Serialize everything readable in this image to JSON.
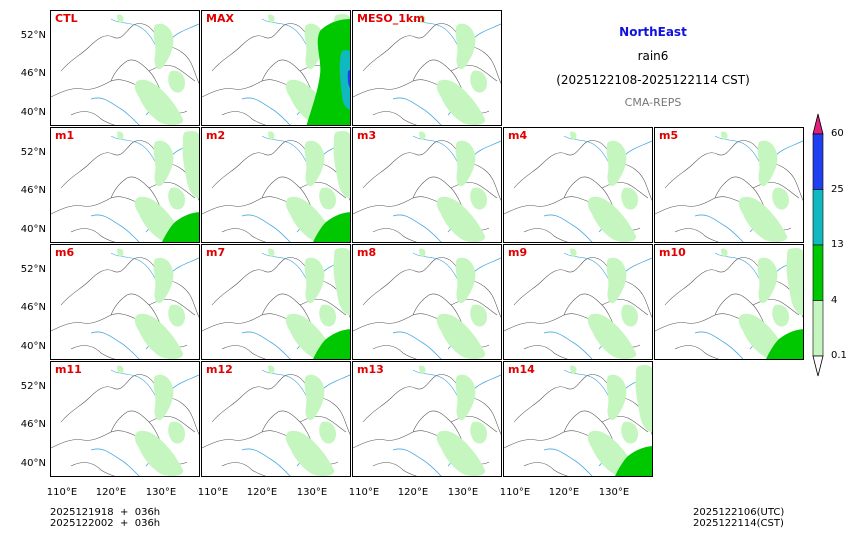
{
  "header": {
    "region": "NorthEast",
    "product": "rain6",
    "period": "(2025122108-2025122114 CST)",
    "source": "CMA-REPS"
  },
  "panels": [
    {
      "label": "CTL",
      "rain": 1
    },
    {
      "label": "MAX",
      "rain": 3
    },
    {
      "label": "MESO_1km",
      "rain": 1
    },
    {
      "label": "m1",
      "rain": 2
    },
    {
      "label": "m2",
      "rain": 2
    },
    {
      "label": "m3",
      "rain": 1
    },
    {
      "label": "m4",
      "rain": 1
    },
    {
      "label": "m5",
      "rain": 1
    },
    {
      "label": "m6",
      "rain": 1
    },
    {
      "label": "m7",
      "rain": 2
    },
    {
      "label": "m8",
      "rain": 1
    },
    {
      "label": "m9",
      "rain": 1
    },
    {
      "label": "m10",
      "rain": 2
    },
    {
      "label": "m11",
      "rain": 1
    },
    {
      "label": "m12",
      "rain": 1
    },
    {
      "label": "m13",
      "rain": 1
    },
    {
      "label": "m14",
      "rain": 2
    }
  ],
  "axes": {
    "lat_ticks": [
      "52°N",
      "46°N",
      "40°N"
    ],
    "lon_ticks": [
      "110°E",
      "120°E",
      "130°E"
    ]
  },
  "colorbar": {
    "levels": [
      "0.1",
      "4",
      "13",
      "25",
      "60"
    ],
    "colors": [
      "#c6f6c0",
      "#00c800",
      "#10b8c0",
      "#2040f0",
      "#e0207a"
    ]
  },
  "footer": {
    "init_line1": "2025121918  +  036h",
    "init_line2": "2025122002  +  036h",
    "valid_utc": "2025122106(UTC)",
    "valid_cst": "2025122114(CST)"
  }
}
